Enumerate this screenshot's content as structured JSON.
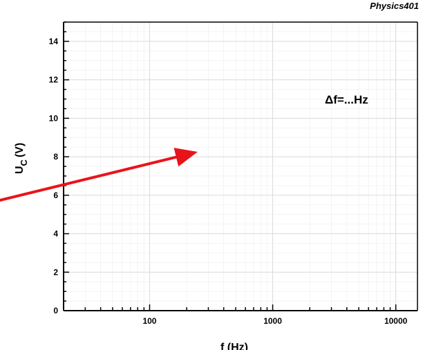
{
  "watermark": "Physics401",
  "chart_data": {
    "type": "line",
    "xscale": "log",
    "xlim": [
      20,
      15000
    ],
    "ylim": [
      0,
      15
    ],
    "x_ticks": [
      100,
      1000,
      10000
    ],
    "x_tick_labels": [
      "100",
      "1000",
      "10000"
    ],
    "y_ticks": [
      0,
      2,
      4,
      6,
      8,
      10,
      12,
      14
    ],
    "y_tick_labels": [
      "0",
      "2",
      "4",
      "6",
      "8",
      "10",
      "12",
      "14"
    ],
    "ylabel_main": "U",
    "ylabel_sub": "C",
    "ylabel_unit": "(V)",
    "xlabel": "f (Hz)",
    "annotation": "Δf=...Hz",
    "grid": true,
    "series": [],
    "arrow": {
      "from": [
        0,
        0
      ],
      "to": [
        0,
        0
      ]
    },
    "colors": {
      "arrow": "#e8141b",
      "grid": "#d9d9d9",
      "minor_grid": "#f0f0f0",
      "axis": "#000000"
    }
  }
}
